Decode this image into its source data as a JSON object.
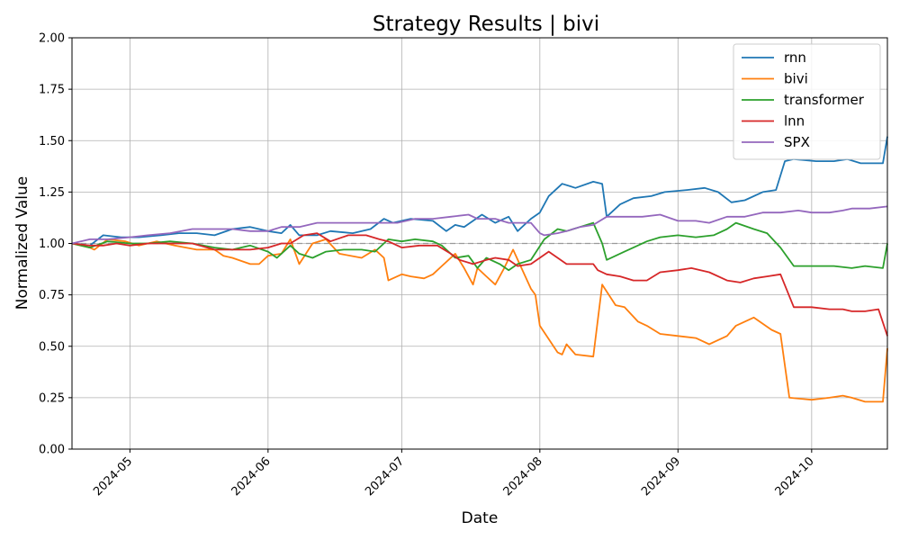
{
  "chart_data": {
    "type": "line",
    "title": "Strategy Results | bivi",
    "xlabel": "Date",
    "ylabel": "Normalized Value",
    "xlim": [
      "2024-04-18",
      "2024-10-18"
    ],
    "ylim": [
      0,
      2
    ],
    "y_ticks": [
      "0.00",
      "0.25",
      "0.50",
      "0.75",
      "1.00",
      "1.25",
      "1.50",
      "1.75",
      "2.00"
    ],
    "x_ticks": [
      "2024-05",
      "2024-06",
      "2024-07",
      "2024-08",
      "2024-09",
      "2024-10"
    ],
    "x_tick_dates": [
      "2024-05-01",
      "2024-06-01",
      "2024-07-01",
      "2024-08-01",
      "2024-09-01",
      "2024-10-01"
    ],
    "grid": true,
    "reference_line": 1.0,
    "legend_position": "top-right",
    "series": [
      {
        "name": "rnn",
        "color": "#1f77b4",
        "x": [
          "2024-04-18",
          "2024-04-22",
          "2024-04-25",
          "2024-04-29",
          "2024-05-03",
          "2024-05-08",
          "2024-05-12",
          "2024-05-16",
          "2024-05-20",
          "2024-05-24",
          "2024-05-28",
          "2024-06-01",
          "2024-06-04",
          "2024-06-06",
          "2024-06-08",
          "2024-06-12",
          "2024-06-15",
          "2024-06-20",
          "2024-06-24",
          "2024-06-27",
          "2024-06-29",
          "2024-07-03",
          "2024-07-08",
          "2024-07-11",
          "2024-07-13",
          "2024-07-15",
          "2024-07-19",
          "2024-07-22",
          "2024-07-25",
          "2024-07-27",
          "2024-07-30",
          "2024-08-01",
          "2024-08-03",
          "2024-08-06",
          "2024-08-09",
          "2024-08-13",
          "2024-08-15",
          "2024-08-16",
          "2024-08-19",
          "2024-08-22",
          "2024-08-26",
          "2024-08-29",
          "2024-09-03",
          "2024-09-07",
          "2024-09-10",
          "2024-09-13",
          "2024-09-16",
          "2024-09-20",
          "2024-09-23",
          "2024-09-25",
          "2024-09-27",
          "2024-10-02",
          "2024-10-06",
          "2024-10-09",
          "2024-10-12",
          "2024-10-17",
          "2024-10-18"
        ],
        "values": [
          1.0,
          0.99,
          1.04,
          1.03,
          1.03,
          1.04,
          1.05,
          1.05,
          1.04,
          1.07,
          1.08,
          1.06,
          1.05,
          1.09,
          1.04,
          1.04,
          1.06,
          1.05,
          1.07,
          1.12,
          1.1,
          1.12,
          1.11,
          1.06,
          1.09,
          1.08,
          1.14,
          1.1,
          1.13,
          1.06,
          1.12,
          1.15,
          1.23,
          1.29,
          1.27,
          1.3,
          1.29,
          1.13,
          1.19,
          1.22,
          1.23,
          1.25,
          1.26,
          1.27,
          1.25,
          1.2,
          1.21,
          1.25,
          1.26,
          1.4,
          1.41,
          1.4,
          1.4,
          1.41,
          1.39,
          1.39,
          1.52
        ]
      },
      {
        "name": "bivi",
        "color": "#ff7f0e",
        "x": [
          "2024-04-18",
          "2024-04-22",
          "2024-04-23",
          "2024-04-26",
          "2024-04-30",
          "2024-05-03",
          "2024-05-07",
          "2024-05-11",
          "2024-05-16",
          "2024-05-20",
          "2024-05-22",
          "2024-05-24",
          "2024-05-28",
          "2024-05-30",
          "2024-06-01",
          "2024-06-04",
          "2024-06-06",
          "2024-06-08",
          "2024-06-11",
          "2024-06-14",
          "2024-06-17",
          "2024-06-22",
          "2024-06-25",
          "2024-06-27",
          "2024-06-28",
          "2024-07-01",
          "2024-07-03",
          "2024-07-06",
          "2024-07-08",
          "2024-07-10",
          "2024-07-13",
          "2024-07-15",
          "2024-07-17",
          "2024-07-18",
          "2024-07-20",
          "2024-07-22",
          "2024-07-24",
          "2024-07-26",
          "2024-07-30",
          "2024-07-31",
          "2024-08-01",
          "2024-08-05",
          "2024-08-06",
          "2024-08-07",
          "2024-08-09",
          "2024-08-13",
          "2024-08-15",
          "2024-08-18",
          "2024-08-20",
          "2024-08-23",
          "2024-08-25",
          "2024-08-28",
          "2024-09-01",
          "2024-09-05",
          "2024-09-08",
          "2024-09-12",
          "2024-09-14",
          "2024-09-18",
          "2024-09-22",
          "2024-09-24",
          "2024-09-26",
          "2024-10-01",
          "2024-10-05",
          "2024-10-08",
          "2024-10-10",
          "2024-10-13",
          "2024-10-17",
          "2024-10-18"
        ],
        "values": [
          1.0,
          0.98,
          0.97,
          1.02,
          1.01,
          0.99,
          1.01,
          0.99,
          0.97,
          0.97,
          0.94,
          0.93,
          0.9,
          0.9,
          0.94,
          0.95,
          1.02,
          0.9,
          1.0,
          1.02,
          0.95,
          0.93,
          0.97,
          0.93,
          0.82,
          0.85,
          0.84,
          0.83,
          0.85,
          0.89,
          0.95,
          0.88,
          0.8,
          0.88,
          0.84,
          0.8,
          0.88,
          0.97,
          0.78,
          0.75,
          0.6,
          0.47,
          0.46,
          0.51,
          0.46,
          0.45,
          0.8,
          0.7,
          0.69,
          0.62,
          0.6,
          0.56,
          0.55,
          0.54,
          0.51,
          0.55,
          0.6,
          0.64,
          0.58,
          0.56,
          0.25,
          0.24,
          0.25,
          0.26,
          0.25,
          0.23,
          0.23,
          0.49
        ]
      },
      {
        "name": "transformer",
        "color": "#2ca02c",
        "x": [
          "2024-04-18",
          "2024-04-22",
          "2024-04-26",
          "2024-05-01",
          "2024-05-05",
          "2024-05-10",
          "2024-05-15",
          "2024-05-20",
          "2024-05-24",
          "2024-05-28",
          "2024-06-01",
          "2024-06-03",
          "2024-06-06",
          "2024-06-08",
          "2024-06-11",
          "2024-06-14",
          "2024-06-18",
          "2024-06-22",
          "2024-06-25",
          "2024-06-28",
          "2024-07-01",
          "2024-07-04",
          "2024-07-08",
          "2024-07-10",
          "2024-07-13",
          "2024-07-16",
          "2024-07-18",
          "2024-07-20",
          "2024-07-23",
          "2024-07-25",
          "2024-07-27",
          "2024-07-30",
          "2024-08-02",
          "2024-08-05",
          "2024-08-07",
          "2024-08-10",
          "2024-08-13",
          "2024-08-15",
          "2024-08-16",
          "2024-08-20",
          "2024-08-22",
          "2024-08-25",
          "2024-08-28",
          "2024-09-01",
          "2024-09-05",
          "2024-09-09",
          "2024-09-12",
          "2024-09-14",
          "2024-09-18",
          "2024-09-21",
          "2024-09-24",
          "2024-09-27",
          "2024-10-01",
          "2024-10-06",
          "2024-10-10",
          "2024-10-13",
          "2024-10-17",
          "2024-10-18"
        ],
        "values": [
          1.0,
          0.98,
          1.01,
          1.0,
          1.0,
          1.01,
          1.0,
          0.98,
          0.97,
          0.99,
          0.96,
          0.93,
          0.99,
          0.95,
          0.93,
          0.96,
          0.97,
          0.97,
          0.96,
          1.02,
          1.01,
          1.02,
          1.01,
          0.99,
          0.93,
          0.94,
          0.88,
          0.93,
          0.9,
          0.87,
          0.9,
          0.92,
          1.02,
          1.07,
          1.06,
          1.08,
          1.1,
          1.0,
          0.92,
          0.96,
          0.98,
          1.01,
          1.03,
          1.04,
          1.03,
          1.04,
          1.07,
          1.1,
          1.07,
          1.05,
          0.98,
          0.89,
          0.89,
          0.89,
          0.88,
          0.89,
          0.88,
          1.0
        ]
      },
      {
        "name": "lnn",
        "color": "#d62728",
        "x": [
          "2024-04-18",
          "2024-04-22",
          "2024-04-25",
          "2024-04-28",
          "2024-05-01",
          "2024-05-05",
          "2024-05-10",
          "2024-05-15",
          "2024-05-20",
          "2024-05-24",
          "2024-05-28",
          "2024-06-01",
          "2024-06-04",
          "2024-06-06",
          "2024-06-09",
          "2024-06-12",
          "2024-06-15",
          "2024-06-19",
          "2024-06-23",
          "2024-06-26",
          "2024-06-28",
          "2024-07-01",
          "2024-07-05",
          "2024-07-09",
          "2024-07-12",
          "2024-07-14",
          "2024-07-17",
          "2024-07-20",
          "2024-07-22",
          "2024-07-25",
          "2024-07-27",
          "2024-07-30",
          "2024-08-01",
          "2024-08-03",
          "2024-08-05",
          "2024-08-07",
          "2024-08-09",
          "2024-08-11",
          "2024-08-13",
          "2024-08-14",
          "2024-08-16",
          "2024-08-19",
          "2024-08-22",
          "2024-08-25",
          "2024-08-28",
          "2024-09-01",
          "2024-09-04",
          "2024-09-08",
          "2024-09-12",
          "2024-09-15",
          "2024-09-18",
          "2024-09-21",
          "2024-09-24",
          "2024-09-27",
          "2024-10-01",
          "2024-10-05",
          "2024-10-08",
          "2024-10-10",
          "2024-10-13",
          "2024-10-16",
          "2024-10-18"
        ],
        "values": [
          1.0,
          0.99,
          0.99,
          1.0,
          0.99,
          1.0,
          1.0,
          1.0,
          0.97,
          0.97,
          0.97,
          0.98,
          1.0,
          1.0,
          1.04,
          1.05,
          1.01,
          1.04,
          1.04,
          1.02,
          1.01,
          0.98,
          0.99,
          0.99,
          0.95,
          0.92,
          0.9,
          0.92,
          0.93,
          0.92,
          0.89,
          0.9,
          0.93,
          0.96,
          0.93,
          0.9,
          0.9,
          0.9,
          0.9,
          0.87,
          0.85,
          0.84,
          0.82,
          0.82,
          0.86,
          0.87,
          0.88,
          0.86,
          0.82,
          0.81,
          0.83,
          0.84,
          0.85,
          0.69,
          0.69,
          0.68,
          0.68,
          0.67,
          0.67,
          0.68,
          0.55
        ]
      },
      {
        "name": "SPX",
        "color": "#9467bd",
        "x": [
          "2024-04-18",
          "2024-04-22",
          "2024-04-26",
          "2024-05-01",
          "2024-05-05",
          "2024-05-10",
          "2024-05-15",
          "2024-05-20",
          "2024-05-24",
          "2024-05-28",
          "2024-06-01",
          "2024-06-04",
          "2024-06-08",
          "2024-06-12",
          "2024-06-16",
          "2024-06-20",
          "2024-06-25",
          "2024-06-30",
          "2024-07-04",
          "2024-07-08",
          "2024-07-12",
          "2024-07-16",
          "2024-07-18",
          "2024-07-22",
          "2024-07-25",
          "2024-07-30",
          "2024-08-01",
          "2024-08-02",
          "2024-08-05",
          "2024-08-07",
          "2024-08-10",
          "2024-08-13",
          "2024-08-16",
          "2024-08-20",
          "2024-08-24",
          "2024-08-28",
          "2024-09-01",
          "2024-09-05",
          "2024-09-08",
          "2024-09-12",
          "2024-09-16",
          "2024-09-20",
          "2024-09-24",
          "2024-09-28",
          "2024-10-01",
          "2024-10-05",
          "2024-10-08",
          "2024-10-10",
          "2024-10-14",
          "2024-10-18"
        ],
        "values": [
          1.0,
          1.02,
          1.02,
          1.03,
          1.04,
          1.05,
          1.07,
          1.07,
          1.07,
          1.06,
          1.06,
          1.08,
          1.08,
          1.1,
          1.1,
          1.1,
          1.1,
          1.1,
          1.12,
          1.12,
          1.13,
          1.14,
          1.12,
          1.12,
          1.1,
          1.1,
          1.05,
          1.04,
          1.05,
          1.06,
          1.08,
          1.09,
          1.13,
          1.13,
          1.13,
          1.14,
          1.11,
          1.11,
          1.1,
          1.13,
          1.13,
          1.15,
          1.15,
          1.16,
          1.15,
          1.15,
          1.16,
          1.17,
          1.17,
          1.18
        ]
      }
    ]
  }
}
